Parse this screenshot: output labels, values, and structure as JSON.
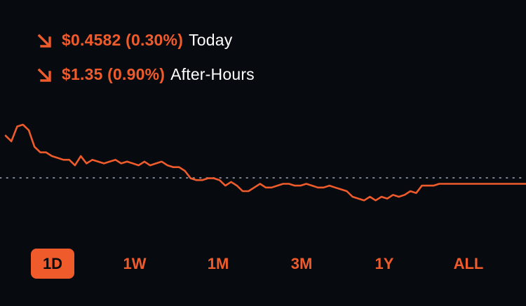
{
  "accent_color": "#ef5b2b",
  "background_color": "#070b10",
  "today": {
    "direction_icon": "arrow-down-right-icon",
    "amount": "$0.4582 (0.30%)",
    "label": "Today"
  },
  "after_hours": {
    "direction_icon": "arrow-down-right-icon",
    "amount": "$1.35 (0.90%)",
    "label": "After-Hours"
  },
  "ranges": [
    {
      "label": "1D",
      "active": true
    },
    {
      "label": "1W",
      "active": false
    },
    {
      "label": "1M",
      "active": false
    },
    {
      "label": "3M",
      "active": false
    },
    {
      "label": "1Y",
      "active": false
    },
    {
      "label": "ALL",
      "active": false
    }
  ],
  "chart_data": {
    "type": "line",
    "title": "",
    "xlabel": "",
    "ylabel": "",
    "reference_line": "previous-close (dotted)",
    "grid": false,
    "series": [
      {
        "values": [
          44,
          41,
          49,
          50,
          47,
          38,
          35,
          35,
          33,
          32,
          31,
          31,
          28,
          33,
          29,
          31,
          30,
          29,
          30,
          31,
          29,
          30,
          29,
          28,
          30,
          28,
          29,
          30,
          28,
          27,
          27,
          25,
          21,
          20,
          20,
          21,
          21,
          20,
          17,
          19,
          17,
          14,
          14,
          16,
          18,
          16,
          16,
          17,
          18,
          18,
          17,
          17,
          18,
          17,
          16,
          16,
          17,
          16,
          15,
          14,
          11,
          10,
          9,
          11,
          9,
          11,
          10,
          12,
          11,
          12,
          14,
          13,
          17,
          17,
          17,
          18,
          18,
          18,
          18,
          18,
          18,
          18,
          18,
          18,
          18,
          18,
          18,
          18,
          18,
          18,
          18
        ]
      }
    ]
  }
}
